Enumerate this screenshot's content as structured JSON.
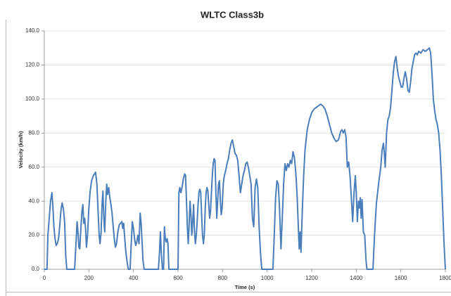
{
  "chart_data": {
    "type": "line",
    "title": "WLTC Class3b",
    "x_label": "Time (s)",
    "y_label": "Velocity (km/h)",
    "color": "#4a7ebb",
    "grid": true,
    "xlim": [
      0,
      1800
    ],
    "xticks": [
      0,
      200,
      400,
      600,
      800,
      1000,
      1200,
      1400,
      1600,
      1800
    ],
    "ylim": [
      0,
      140
    ],
    "yticks": [
      {
        "value": 0,
        "label": "0.0"
      },
      {
        "value": 20,
        "label": "20.0"
      },
      {
        "value": 40,
        "label": "40.0"
      },
      {
        "value": 60,
        "label": "60.0"
      },
      {
        "value": 80,
        "label": "80.0"
      },
      {
        "value": 100,
        "label": "100.0"
      },
      {
        "value": 120,
        "label": "120.0"
      },
      {
        "value": 140,
        "label": "140.0"
      }
    ],
    "x": [
      0,
      12,
      16,
      22,
      28,
      34,
      38,
      43,
      48,
      53,
      58,
      64,
      70,
      75,
      80,
      86,
      91,
      96,
      101,
      136,
      142,
      147,
      151,
      155,
      159,
      164,
      169,
      173,
      177,
      181,
      185,
      189,
      194,
      199,
      205,
      212,
      220,
      230,
      236,
      241,
      246,
      250,
      255,
      259,
      263,
      267,
      271,
      276,
      280,
      284,
      289,
      294,
      299,
      304,
      309,
      314,
      319,
      324,
      330,
      336,
      342,
      348,
      352,
      356,
      361,
      366,
      372,
      377,
      385,
      390,
      395,
      400,
      405,
      410,
      415,
      420,
      425,
      430,
      434,
      438,
      443,
      448,
      512,
      517,
      521,
      525,
      530,
      535,
      539,
      543,
      547,
      551,
      555,
      559,
      600,
      604,
      608,
      613,
      618,
      624,
      630,
      634,
      638,
      642,
      646,
      650,
      654,
      658,
      662,
      666,
      670,
      674,
      678,
      682,
      686,
      690,
      694,
      698,
      702,
      706,
      710,
      714,
      718,
      722,
      726,
      730,
      734,
      738,
      742,
      746,
      750,
      754,
      758,
      762,
      766,
      770,
      774,
      778,
      782,
      786,
      790,
      794,
      798,
      803,
      808,
      814,
      820,
      826,
      832,
      838,
      844,
      850,
      856,
      862,
      868,
      874,
      880,
      886,
      892,
      898,
      904,
      910,
      916,
      922,
      928,
      934,
      940,
      946,
      952,
      958,
      964,
      970,
      976,
      1026,
      1032,
      1038,
      1044,
      1050,
      1056,
      1062,
      1068,
      1074,
      1080,
      1086,
      1092,
      1098,
      1104,
      1110,
      1116,
      1122,
      1128,
      1134,
      1140,
      1144,
      1148,
      1152,
      1158,
      1164,
      1170,
      1180,
      1190,
      1200,
      1210,
      1220,
      1230,
      1240,
      1250,
      1260,
      1270,
      1280,
      1290,
      1300,
      1310,
      1320,
      1330,
      1336,
      1342,
      1348,
      1354,
      1360,
      1366,
      1372,
      1378,
      1384,
      1390,
      1396,
      1400,
      1405,
      1410,
      1414,
      1418,
      1422,
      1426,
      1432,
      1438,
      1444,
      1448,
      1475,
      1482,
      1490,
      1500,
      1510,
      1516,
      1522,
      1526,
      1530,
      1536,
      1542,
      1548,
      1554,
      1560,
      1566,
      1572,
      1578,
      1584,
      1590,
      1596,
      1602,
      1608,
      1614,
      1620,
      1626,
      1632,
      1638,
      1644,
      1650,
      1656,
      1662,
      1668,
      1674,
      1680,
      1690,
      1700,
      1710,
      1720,
      1728,
      1734,
      1740,
      1746,
      1752,
      1758,
      1764,
      1770,
      1776,
      1782,
      1788,
      1794,
      1800
    ],
    "values": [
      0,
      0,
      20,
      30,
      40,
      45,
      38,
      25,
      18,
      14,
      15,
      18,
      27,
      35,
      39,
      35,
      28,
      8,
      0,
      0,
      15,
      28,
      22,
      13,
      12,
      24,
      34,
      38,
      27,
      30,
      24,
      13,
      20,
      34,
      45,
      52,
      55,
      57,
      50,
      35,
      20,
      15,
      22,
      38,
      46,
      30,
      22,
      40,
      50,
      44,
      48,
      42,
      38,
      33,
      25,
      18,
      13,
      15,
      22,
      26,
      27,
      28,
      24,
      27,
      18,
      10,
      4,
      0,
      0,
      15,
      28,
      24,
      18,
      14,
      16,
      20,
      15,
      33,
      28,
      18,
      5,
      0,
      0,
      10,
      22,
      10,
      0,
      0,
      25,
      18,
      16,
      18,
      15,
      0,
      0,
      45,
      48,
      45,
      48,
      53,
      56,
      55,
      40,
      25,
      15,
      26,
      40,
      32,
      20,
      28,
      38,
      22,
      15,
      20,
      28,
      38,
      45,
      47,
      45,
      32,
      20,
      15,
      20,
      35,
      45,
      48,
      46,
      38,
      30,
      34,
      45,
      55,
      62,
      65,
      64,
      45,
      30,
      40,
      50,
      52,
      40,
      32,
      36,
      50,
      55,
      58,
      62,
      65,
      70,
      74,
      76,
      72,
      68,
      67,
      64,
      55,
      45,
      50,
      55,
      58,
      62,
      63,
      60,
      55,
      50,
      30,
      25,
      48,
      53,
      48,
      25,
      10,
      0,
      0,
      20,
      42,
      52,
      50,
      35,
      12,
      30,
      50,
      62,
      58,
      62,
      60,
      64,
      62,
      69,
      66,
      58,
      45,
      25,
      12,
      22,
      10,
      35,
      55,
      70,
      82,
      88,
      92,
      94,
      95,
      96,
      97,
      96,
      94,
      90,
      85,
      80,
      77,
      75,
      76,
      81,
      82,
      80,
      82,
      78,
      60,
      63,
      55,
      42,
      28,
      45,
      55,
      45,
      28,
      40,
      36,
      42,
      30,
      41,
      22,
      20,
      5,
      0,
      0,
      20,
      38,
      50,
      60,
      70,
      74,
      68,
      60,
      80,
      88,
      90,
      95,
      105,
      115,
      122,
      125,
      118,
      113,
      110,
      107,
      107,
      112,
      116,
      112,
      105,
      104,
      110,
      118,
      122,
      126,
      127,
      126,
      128,
      127,
      129,
      128,
      129,
      130,
      127,
      115,
      100,
      93,
      88,
      85,
      80,
      70,
      55,
      35,
      15,
      0
    ]
  }
}
